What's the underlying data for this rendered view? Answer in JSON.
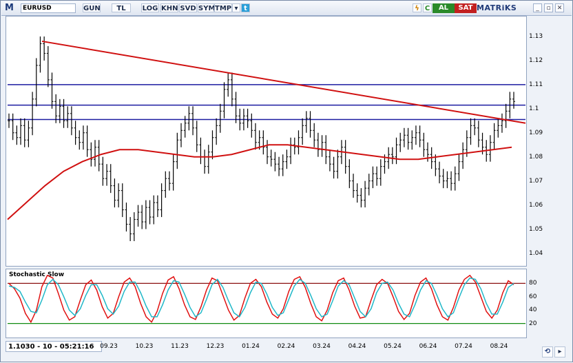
{
  "toolbar": {
    "logo": "M",
    "symbol": "EURUSD",
    "buttons": [
      "GUN",
      "TL",
      "LOG",
      "KHN",
      "SVD",
      "SYM",
      "TMP"
    ],
    "buy": "AL",
    "sell": "SAT",
    "brand": "MATRiKS",
    "colors": {
      "buy": "#2a8a2a",
      "sell": "#c22020",
      "background": "#dfe6f1"
    }
  },
  "status": {
    "readout": "1.1030 - 10 - 05:21:16"
  },
  "chart_data": [
    {
      "type": "candlestick",
      "title": "",
      "x_tick_labels": [
        "09.23",
        "10.23",
        "11.23",
        "12.23",
        "01.24",
        "02.24",
        "03.24",
        "04.24",
        "05.24",
        "06.24",
        "07.24",
        "08.24"
      ],
      "y_tick_labels": [
        "1.13",
        "1.12",
        "1.11",
        "1.1",
        "1.09",
        "1.08",
        "1.07",
        "1.06",
        "1.05",
        "1.04"
      ],
      "ylim": [
        1.035,
        1.138
      ],
      "series": [
        {
          "role": "price",
          "color": "#000000",
          "values": [
            1.095,
            1.09,
            1.088,
            1.093,
            1.087,
            1.092,
            1.104,
            1.118,
            1.127,
            1.123,
            1.112,
            1.103,
            1.097,
            1.101,
            1.095,
            1.098,
            1.092,
            1.088,
            1.086,
            1.09,
            1.083,
            1.079,
            1.084,
            1.077,
            1.071,
            1.074,
            1.068,
            1.062,
            1.066,
            1.058,
            1.052,
            1.048,
            1.054,
            1.057,
            1.053,
            1.059,
            1.055,
            1.061,
            1.058,
            1.066,
            1.071,
            1.069,
            1.078,
            1.087,
            1.091,
            1.094,
            1.098,
            1.092,
            1.085,
            1.08,
            1.076,
            1.082,
            1.088,
            1.093,
            1.099,
            1.108,
            1.112,
            1.104,
            1.097,
            1.094,
            1.097,
            1.095,
            1.091,
            1.086,
            1.088,
            1.084,
            1.08,
            1.079,
            1.077,
            1.075,
            1.078,
            1.08,
            1.085,
            1.084,
            1.088,
            1.093,
            1.096,
            1.091,
            1.087,
            1.083,
            1.086,
            1.08,
            1.077,
            1.074,
            1.08,
            1.084,
            1.076,
            1.07,
            1.066,
            1.064,
            1.062,
            1.067,
            1.07,
            1.073,
            1.071,
            1.076,
            1.078,
            1.081,
            1.08,
            1.085,
            1.087,
            1.089,
            1.086,
            1.088,
            1.09,
            1.087,
            1.083,
            1.081,
            1.078,
            1.075,
            1.072,
            1.07,
            1.071,
            1.069,
            1.073,
            1.078,
            1.083,
            1.088,
            1.093,
            1.092,
            1.087,
            1.084,
            1.081,
            1.086,
            1.091,
            1.093,
            1.095,
            1.099,
            1.104,
            1.103
          ]
        },
        {
          "role": "moving-average",
          "color": "#d01010",
          "values": [
            1.054,
            1.061,
            1.068,
            1.074,
            1.078,
            1.081,
            1.083,
            1.083,
            1.082,
            1.081,
            1.08,
            1.08,
            1.081,
            1.083,
            1.085,
            1.085,
            1.084,
            1.083,
            1.082,
            1.081,
            1.08,
            1.079,
            1.079,
            1.08,
            1.081,
            1.082,
            1.083,
            1.084
          ]
        },
        {
          "role": "trendline",
          "color": "#d01010",
          "values": [
            1.128,
            1.094
          ]
        },
        {
          "role": "horizontal-line",
          "color": "#1a1aa0",
          "values": [
            1.11
          ]
        },
        {
          "role": "horizontal-line",
          "color": "#1a1aa0",
          "values": [
            1.1015
          ]
        },
        {
          "role": "horizontal-line",
          "color": "#1a1aa0",
          "values": [
            1.0955
          ]
        }
      ]
    },
    {
      "type": "line",
      "title": "Stochastic Slow",
      "y_tick_labels": [
        "80",
        "60",
        "40",
        "20"
      ],
      "ylim": [
        0,
        100
      ],
      "series": [
        {
          "role": "%K",
          "color": "#e01010",
          "values": [
            80,
            72,
            58,
            35,
            22,
            40,
            75,
            92,
            88,
            65,
            40,
            25,
            30,
            55,
            78,
            85,
            70,
            45,
            28,
            35,
            60,
            82,
            88,
            75,
            50,
            30,
            22,
            38,
            65,
            85,
            90,
            72,
            48,
            30,
            26,
            45,
            70,
            88,
            84,
            62,
            40,
            25,
            32,
            58,
            80,
            86,
            75,
            52,
            34,
            28,
            42,
            68,
            86,
            90,
            74,
            50,
            30,
            24,
            40,
            66,
            84,
            88,
            70,
            46,
            28,
            30,
            55,
            78,
            86,
            80,
            60,
            38,
            26,
            35,
            62,
            82,
            88,
            72,
            48,
            30,
            25,
            44,
            70,
            86,
            92,
            82,
            60,
            38,
            28,
            40,
            66,
            84,
            78
          ]
        },
        {
          "role": "%D",
          "color": "#20b8c8",
          "values": [
            76,
            74,
            68,
            52,
            38,
            36,
            55,
            78,
            86,
            78,
            60,
            40,
            32,
            42,
            62,
            78,
            78,
            62,
            42,
            34,
            46,
            68,
            82,
            82,
            66,
            46,
            30,
            30,
            48,
            70,
            84,
            82,
            64,
            44,
            30,
            36,
            56,
            78,
            86,
            74,
            54,
            36,
            30,
            44,
            66,
            82,
            80,
            64,
            44,
            32,
            36,
            56,
            76,
            86,
            80,
            62,
            42,
            30,
            34,
            54,
            76,
            84,
            78,
            58,
            38,
            30,
            42,
            66,
            80,
            82,
            70,
            50,
            34,
            30,
            48,
            70,
            84,
            80,
            62,
            42,
            30,
            36,
            58,
            78,
            88,
            86,
            72,
            50,
            34,
            34,
            52,
            74,
            80
          ]
        },
        {
          "role": "upper-level",
          "color": "#8a1010",
          "values": [
            80
          ]
        },
        {
          "role": "lower-level",
          "color": "#108a10",
          "values": [
            20
          ]
        }
      ]
    }
  ]
}
